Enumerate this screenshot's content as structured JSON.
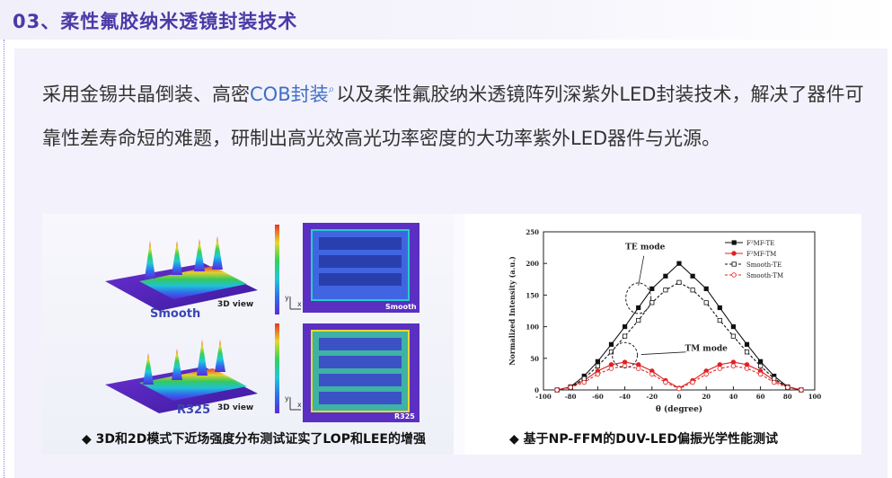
{
  "section": {
    "title": "03、柔性氟胶纳米透镜封装技术"
  },
  "paragraph": {
    "part1": "采用金锡共晶倒装、高密",
    "link": "COB封装",
    "part2": "以及柔性氟胶纳米透镜阵列深紫外LED封装技术，解决了器件可靠性差寿命短的难题，研制出高光效高光功率密度的大功率紫外LED器件与光源。"
  },
  "icons": {
    "link_search": "magnifier-icon",
    "bullet": "diamond-icon"
  },
  "figure_left": {
    "caption": "◆ 3D和2D模式下近场强度分布测试证实了LOP和LEE的增强",
    "top": {
      "name": "Smooth",
      "view": "3D view",
      "map": "Smooth"
    },
    "bottom": {
      "name": "R325",
      "view": "3D view",
      "map": "R325"
    },
    "axis_x": "x",
    "axis_y": "y"
  },
  "figure_right": {
    "caption": "◆ 基于NP-FFM的DUV-LED偏振光学性能测试",
    "annotations": {
      "te": "TE mode",
      "tm": "TM mode"
    }
  },
  "chart_data": {
    "type": "line",
    "xlabel": "θ (degree)",
    "ylabel": "Normalized Intensity (a.u.)",
    "xlim": [
      -100,
      100
    ],
    "ylim": [
      0,
      250
    ],
    "xticks": [
      "-100",
      "-80",
      "-60",
      "-40",
      "-20",
      "0",
      "20",
      "40",
      "60",
      "80",
      "100"
    ],
    "yticks": [
      "0",
      "50",
      "100",
      "150",
      "200",
      "250"
    ],
    "legend": "top-right",
    "x": [
      -90,
      -80,
      -70,
      -60,
      -50,
      -40,
      -30,
      -20,
      -10,
      0,
      10,
      20,
      30,
      40,
      50,
      60,
      70,
      80,
      90
    ],
    "series": [
      {
        "name": "F²MF-TE",
        "color": "#111111",
        "marker": "filled-square",
        "dash": "solid",
        "values": [
          0,
          5,
          22,
          45,
          72,
          100,
          130,
          160,
          180,
          200,
          180,
          160,
          130,
          100,
          72,
          45,
          22,
          5,
          0
        ]
      },
      {
        "name": "F²MF-TM",
        "color": "#e02020",
        "marker": "filled-circle",
        "dash": "solid",
        "values": [
          0,
          5,
          15,
          30,
          40,
          44,
          40,
          30,
          15,
          3,
          15,
          30,
          40,
          44,
          40,
          30,
          15,
          5,
          0
        ]
      },
      {
        "name": "Smooth-TE",
        "color": "#111111",
        "marker": "open-square",
        "dash": "dashed",
        "values": [
          0,
          4,
          18,
          38,
          60,
          85,
          110,
          138,
          158,
          170,
          158,
          138,
          110,
          85,
          60,
          38,
          18,
          4,
          0
        ]
      },
      {
        "name": "Smooth-TM",
        "color": "#e02020",
        "marker": "open-circle",
        "dash": "dashed",
        "values": [
          0,
          4,
          12,
          25,
          34,
          38,
          34,
          25,
          12,
          2,
          12,
          25,
          34,
          38,
          34,
          25,
          12,
          4,
          0
        ]
      }
    ]
  }
}
